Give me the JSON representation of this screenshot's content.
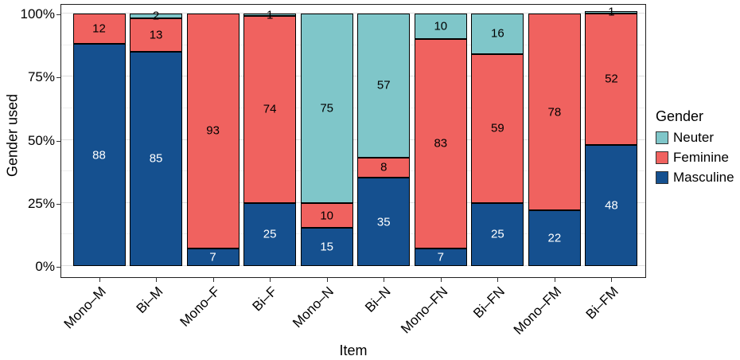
{
  "chart_data": {
    "type": "bar",
    "variant": "stacked-percent",
    "title": "",
    "xlabel": "Item",
    "ylabel": "Gender used",
    "categories": [
      "Mono–M",
      "Bi–M",
      "Mono–F",
      "Bi–F",
      "Mono–N",
      "Bi–N",
      "Mono–FN",
      "Bi–FN",
      "Mono–FM",
      "Bi–FM"
    ],
    "series": [
      {
        "name": "Masculine",
        "color": "#15508F",
        "label_color": "#ffffff",
        "values": [
          88,
          85,
          7,
          25,
          15,
          35,
          7,
          25,
          22,
          48
        ]
      },
      {
        "name": "Feminine",
        "color": "#F0625F",
        "label_color": "#000000",
        "values": [
          12,
          13,
          93,
          74,
          10,
          8,
          83,
          59,
          78,
          52
        ]
      },
      {
        "name": "Neuter",
        "color": "#7FC6C9",
        "label_color": "#000000",
        "values": [
          0,
          2,
          0,
          1,
          75,
          57,
          10,
          16,
          0,
          1
        ]
      }
    ],
    "y_axis": {
      "tick_labels": [
        "0%",
        "25%",
        "50%",
        "75%",
        "100%"
      ],
      "tick_values": [
        0,
        25,
        50,
        75,
        100
      ],
      "minor_tick_values": [
        12.5,
        37.5,
        62.5,
        87.5
      ],
      "range": [
        0,
        100
      ]
    },
    "legend": {
      "title": "Gender",
      "items": [
        "Neuter",
        "Feminine",
        "Masculine"
      ],
      "position": "right"
    },
    "grid": true,
    "panel_border_color": "#1f1f1f"
  }
}
